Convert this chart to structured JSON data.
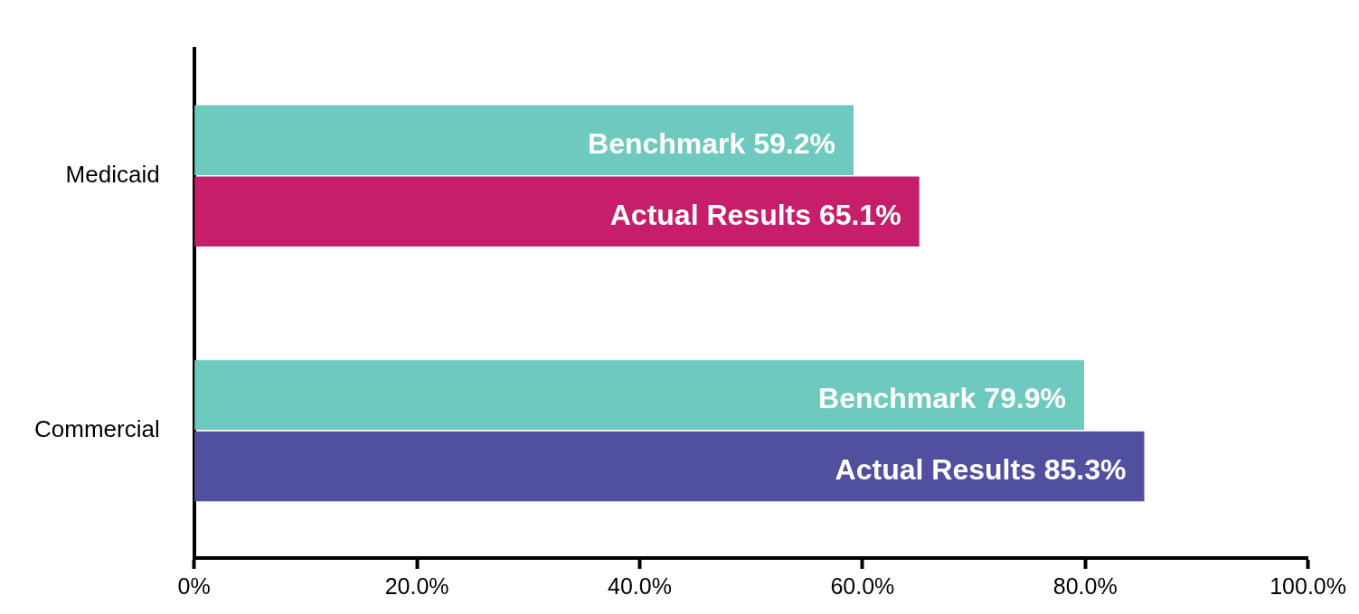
{
  "chart_data": {
    "type": "bar",
    "orientation": "horizontal",
    "categories": [
      "Medicaid",
      "Commercial"
    ],
    "series": [
      {
        "name": "Benchmark",
        "color": "#6ec9bf",
        "values": [
          59.2,
          79.9
        ],
        "value_labels": [
          "59.2%",
          "79.9%"
        ]
      },
      {
        "name": "Actual Results",
        "colors": [
          "#c71e6a",
          "#5150a0"
        ],
        "values": [
          65.1,
          85.3
        ],
        "value_labels": [
          "65.1%",
          "85.3%"
        ]
      }
    ],
    "xlim": [
      0,
      100
    ],
    "xticks": [
      {
        "value": 0,
        "label": "0%"
      },
      {
        "value": 20,
        "label": "20.0%"
      },
      {
        "value": 40,
        "label": "40.0%"
      },
      {
        "value": 60,
        "label": "60.0%"
      },
      {
        "value": 80,
        "label": "80.0%"
      },
      {
        "value": 100,
        "label": "100.0%"
      }
    ]
  }
}
